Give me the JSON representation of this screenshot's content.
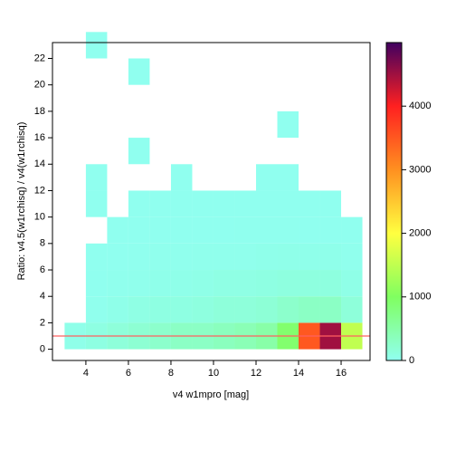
{
  "chart_data": {
    "type": "heatmap",
    "xlabel": "v4 w1mpro [mag]",
    "ylabel": "Ratio: v4.5(w1rchisq) / v4(w1rchisq)",
    "x_bins": [
      3,
      4,
      5,
      6,
      7,
      8,
      9,
      10,
      11,
      12,
      13,
      14,
      15,
      16,
      17
    ],
    "y_bins": [
      0,
      2,
      4,
      6,
      8,
      10,
      12,
      14,
      16,
      18,
      20,
      22,
      24
    ],
    "z": [
      [
        50,
        100,
        150,
        200,
        250,
        300,
        300,
        350,
        400,
        500,
        900,
        3500,
        4500,
        1500
      ],
      [
        null,
        20,
        50,
        80,
        100,
        100,
        120,
        150,
        150,
        180,
        250,
        300,
        300,
        150
      ],
      [
        null,
        10,
        20,
        30,
        40,
        50,
        60,
        80,
        80,
        100,
        120,
        120,
        120,
        60
      ],
      [
        null,
        5,
        10,
        15,
        20,
        20,
        25,
        30,
        30,
        40,
        50,
        40,
        40,
        20
      ],
      [
        null,
        null,
        5,
        5,
        10,
        10,
        10,
        10,
        15,
        15,
        15,
        10,
        10,
        5
      ],
      [
        null,
        5,
        null,
        5,
        5,
        5,
        5,
        5,
        5,
        5,
        5,
        5,
        5,
        null
      ],
      [
        null,
        5,
        null,
        null,
        null,
        5,
        null,
        null,
        null,
        5,
        5,
        null,
        null,
        null
      ],
      [
        null,
        null,
        null,
        5,
        null,
        null,
        null,
        null,
        null,
        null,
        null,
        null,
        null,
        null
      ],
      [
        null,
        null,
        null,
        null,
        null,
        null,
        null,
        null,
        null,
        null,
        5,
        null,
        null,
        null
      ],
      [
        null,
        null,
        null,
        null,
        null,
        null,
        null,
        null,
        null,
        null,
        null,
        null,
        null,
        null
      ],
      [
        null,
        null,
        null,
        5,
        null,
        null,
        null,
        null,
        null,
        null,
        null,
        null,
        null,
        null
      ],
      [
        null,
        5,
        null,
        null,
        null,
        null,
        null,
        null,
        null,
        null,
        null,
        null,
        null,
        null
      ]
    ],
    "xlim": [
      2.43,
      17.36
    ],
    "xticks": [
      4,
      6,
      8,
      10,
      12,
      14,
      16
    ],
    "ylim": [
      -0.85,
      23.2
    ],
    "yticks": [
      0,
      2,
      4,
      6,
      8,
      10,
      12,
      14,
      16,
      18,
      20,
      22
    ],
    "zlim": [
      0,
      5000
    ],
    "zticks": [
      0,
      1000,
      2000,
      3000,
      4000
    ],
    "colorscale": [
      "#90fff0",
      "#80ff60",
      "#ffff40",
      "#ff9020",
      "#ff2020",
      "#400060"
    ],
    "hline": 1,
    "hline_color": "#ff6060"
  }
}
